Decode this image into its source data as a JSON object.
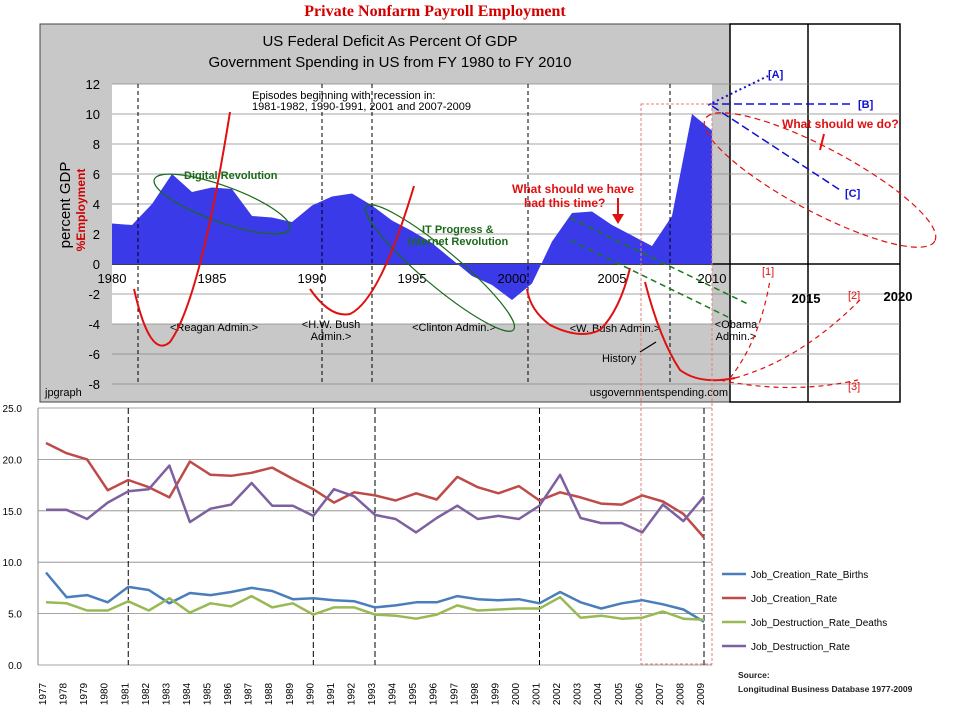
{
  "page_title": "Private Nonfarm Payroll Employment",
  "chart_data": [
    {
      "type": "area",
      "title": "US Federal Deficit As Percent Of GDP",
      "subtitle": "Government Spending in US from FY 1980 to FY 2010",
      "ylabel": "percent GDP",
      "ylabel_overlay": "%Employment",
      "xlim": [
        1980,
        2010
      ],
      "ylim": [
        -8,
        12
      ],
      "yticks": [
        -8,
        -6,
        -4,
        -2,
        0,
        2,
        4,
        6,
        8,
        10,
        12
      ],
      "xticks": [
        1980,
        1985,
        1990,
        1995,
        2000,
        2005,
        2010
      ],
      "extra_xticks": [
        "2015",
        "2020"
      ],
      "series": [
        {
          "name": "Deficit",
          "color": "#3a3ae8",
          "x": [
            1980,
            1981,
            1982,
            1983,
            1984,
            1985,
            1986,
            1987,
            1988,
            1989,
            1990,
            1991,
            1992,
            1993,
            1994,
            1995,
            1996,
            1997,
            1998,
            1999,
            2000,
            2001,
            2002,
            2003,
            2004,
            2005,
            2006,
            2007,
            2008,
            2009,
            2010
          ],
          "values": [
            2.7,
            2.6,
            4.0,
            6.0,
            4.8,
            5.1,
            5.0,
            3.2,
            3.1,
            2.8,
            3.9,
            4.5,
            4.7,
            3.9,
            2.9,
            2.2,
            1.4,
            0.3,
            -0.8,
            -1.4,
            -2.4,
            -1.3,
            1.5,
            3.4,
            3.5,
            2.6,
            1.9,
            1.2,
            3.2,
            10.0,
            8.9
          ]
        }
      ],
      "recession_lines": [
        1981.3,
        1990.5,
        1993,
        2000.8,
        2007.9
      ],
      "annotations": {
        "episodes": "Episodes beginning with recession in:",
        "episodes_years": "1981-1982, 1990-1991, 2001 and 2007-2009",
        "digital": "Digital Revolution",
        "it1": "IT Progress &",
        "it2": "Internet Revolution",
        "should_have1": "What should we have",
        "should_have2": "had this time?",
        "should_do": "What should we do?",
        "history": "History",
        "A": "[A]",
        "B": "[B]",
        "C": "[C]",
        "s1": "[1]",
        "s2": "[2]",
        "s3": "[3]"
      },
      "administrations": [
        "<Reagan Admin.>",
        "<H.W. Bush",
        "Admin.>",
        "<Clinton Admin.>",
        "<W. Bush Admin.>",
        "<Obama",
        "Admin.>"
      ],
      "credit_left": "jpgraph",
      "credit_right": "usgovernmentspending.com"
    },
    {
      "type": "line",
      "categories": [
        "1977",
        "1978",
        "1979",
        "1980",
        "1981",
        "1982",
        "1983",
        "1984",
        "1985",
        "1986",
        "1987",
        "1988",
        "1989",
        "1990",
        "1991",
        "1992",
        "1993",
        "1994",
        "1995",
        "1996",
        "1997",
        "1998",
        "1999",
        "2000",
        "2001",
        "2002",
        "2003",
        "2004",
        "2005",
        "2006",
        "2007",
        "2008",
        "2009"
      ],
      "ylim": [
        0,
        25
      ],
      "yticks": [
        "0.0",
        "5.0",
        "10.0",
        "15.0",
        "20.0",
        "25.0"
      ],
      "series": [
        {
          "name": "Job_Creation_Rate_Births",
          "color": "#4a7ebb",
          "values": [
            9.0,
            6.6,
            6.8,
            6.1,
            7.6,
            7.3,
            6.0,
            7.0,
            6.8,
            7.1,
            7.5,
            7.2,
            6.4,
            6.5,
            6.3,
            6.2,
            5.6,
            5.8,
            6.1,
            6.1,
            6.7,
            6.4,
            6.3,
            6.4,
            6.0,
            7.1,
            6.1,
            5.5,
            6.0,
            6.3,
            5.9,
            5.4,
            4.2
          ]
        },
        {
          "name": "Job_Creation_Rate",
          "color": "#be4b48",
          "values": [
            21.6,
            20.6,
            20.0,
            17.0,
            18.0,
            17.3,
            16.3,
            19.8,
            18.5,
            18.4,
            18.7,
            19.2,
            18.1,
            17.1,
            15.8,
            16.8,
            16.5,
            16.0,
            16.7,
            16.1,
            18.3,
            17.3,
            16.7,
            17.4,
            16.0,
            16.8,
            16.3,
            15.7,
            15.6,
            16.5,
            15.9,
            14.7,
            12.4
          ]
        },
        {
          "name": "Job_Destruction_Rate_Deaths",
          "color": "#98b954",
          "values": [
            6.1,
            6.0,
            5.3,
            5.3,
            6.2,
            5.3,
            6.5,
            5.1,
            6.0,
            5.7,
            6.7,
            5.6,
            6.0,
            4.9,
            5.6,
            5.6,
            4.9,
            4.8,
            4.5,
            4.9,
            5.8,
            5.3,
            5.4,
            5.5,
            5.5,
            6.6,
            4.6,
            4.8,
            4.5,
            4.6,
            5.2,
            4.5,
            4.4
          ]
        },
        {
          "name": "Job_Destruction_Rate",
          "color": "#7d60a0",
          "values": [
            15.1,
            15.1,
            14.2,
            15.8,
            16.9,
            17.1,
            19.4,
            13.9,
            15.2,
            15.6,
            17.7,
            15.5,
            15.5,
            14.5,
            17.1,
            16.4,
            14.6,
            14.2,
            12.9,
            14.3,
            15.5,
            14.2,
            14.5,
            14.2,
            15.5,
            18.5,
            14.3,
            13.8,
            13.8,
            12.9,
            15.6,
            14.0,
            16.4
          ]
        }
      ],
      "recession_markers": [
        "1981",
        "1990",
        "1993",
        "2001",
        "2009"
      ],
      "source_label": "Source:",
      "source_text": "Longitudinal Business Database 1977-2009"
    }
  ]
}
